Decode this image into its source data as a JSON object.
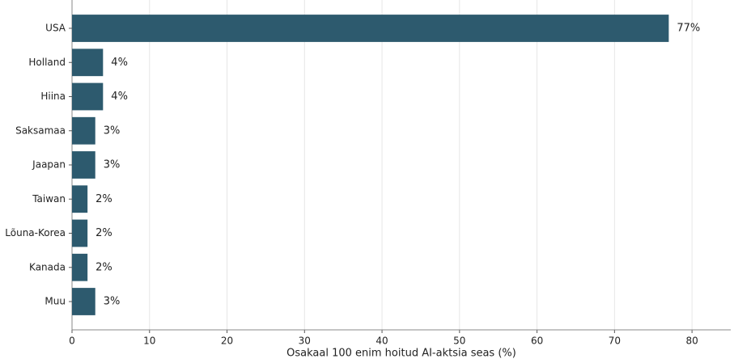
{
  "chart_data": {
    "type": "barh",
    "x_label": "Osakaal 100 enim hoitud AI-aktsia seas (%)",
    "categories": [
      "USA",
      "Holland",
      "Hiina",
      "Saksamaa",
      "Jaapan",
      "Taiwan",
      "Lõuna-Korea",
      "Kanada",
      "Muu"
    ],
    "values": [
      77,
      4,
      4,
      3,
      3,
      2,
      2,
      2,
      3
    ],
    "value_labels": [
      "77%",
      "4%",
      "4%",
      "3%",
      "3%",
      "2%",
      "2%",
      "2%",
      "3%"
    ],
    "color": "#2d5a6e",
    "xlim": [
      0,
      85
    ],
    "xticks": [
      0,
      10,
      20,
      30,
      40,
      50,
      60,
      70,
      80
    ],
    "grid": true
  }
}
